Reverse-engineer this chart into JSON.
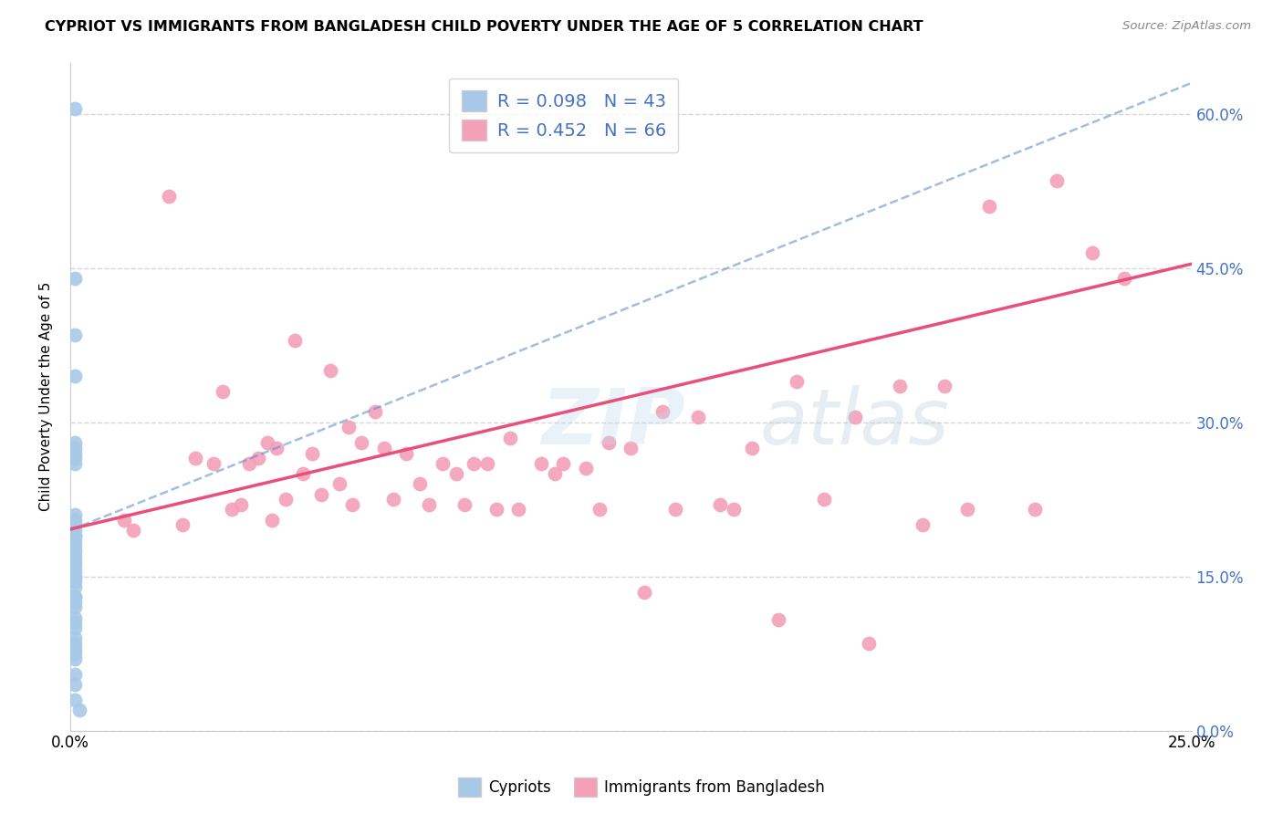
{
  "title": "CYPRIOT VS IMMIGRANTS FROM BANGLADESH CHILD POVERTY UNDER THE AGE OF 5 CORRELATION CHART",
  "source": "Source: ZipAtlas.com",
  "ylabel": "Child Poverty Under the Age of 5",
  "xlim": [
    0.0,
    0.25
  ],
  "ylim": [
    0.0,
    0.65
  ],
  "xticks": [
    0.0,
    0.05,
    0.1,
    0.15,
    0.2,
    0.25
  ],
  "yticks": [
    0.0,
    0.15,
    0.3,
    0.45,
    0.6
  ],
  "blue_R": 0.098,
  "blue_N": 43,
  "pink_R": 0.452,
  "pink_N": 66,
  "blue_color": "#a8c8e8",
  "pink_color": "#f4a0b8",
  "blue_line_color": "#5588cc",
  "pink_line_color": "#e8507a",
  "grid_color": "#cccccc",
  "blue_scatter_x": [
    0.001,
    0.001,
    0.001,
    0.001,
    0.001,
    0.001,
    0.001,
    0.001,
    0.001,
    0.001,
    0.001,
    0.001,
    0.001,
    0.001,
    0.001,
    0.001,
    0.001,
    0.001,
    0.001,
    0.001,
    0.001,
    0.001,
    0.001,
    0.001,
    0.001,
    0.001,
    0.001,
    0.001,
    0.001,
    0.001,
    0.001,
    0.001,
    0.001,
    0.001,
    0.001,
    0.001,
    0.001,
    0.001,
    0.001,
    0.001,
    0.001,
    0.001,
    0.002
  ],
  "blue_scatter_y": [
    0.605,
    0.44,
    0.385,
    0.345,
    0.28,
    0.275,
    0.27,
    0.26,
    0.265,
    0.21,
    0.205,
    0.2,
    0.2,
    0.195,
    0.19,
    0.19,
    0.185,
    0.18,
    0.175,
    0.17,
    0.165,
    0.16,
    0.155,
    0.15,
    0.15,
    0.145,
    0.14,
    0.13,
    0.13,
    0.125,
    0.12,
    0.11,
    0.105,
    0.1,
    0.09,
    0.085,
    0.08,
    0.075,
    0.07,
    0.055,
    0.045,
    0.03,
    0.02
  ],
  "pink_scatter_x": [
    0.012,
    0.014,
    0.022,
    0.025,
    0.028,
    0.032,
    0.034,
    0.036,
    0.038,
    0.04,
    0.042,
    0.044,
    0.045,
    0.046,
    0.048,
    0.05,
    0.052,
    0.054,
    0.056,
    0.058,
    0.06,
    0.062,
    0.063,
    0.065,
    0.068,
    0.07,
    0.072,
    0.075,
    0.078,
    0.08,
    0.083,
    0.086,
    0.088,
    0.09,
    0.093,
    0.095,
    0.098,
    0.1,
    0.105,
    0.108,
    0.11,
    0.115,
    0.118,
    0.12,
    0.125,
    0.128,
    0.132,
    0.135,
    0.14,
    0.145,
    0.148,
    0.152,
    0.158,
    0.162,
    0.168,
    0.175,
    0.178,
    0.185,
    0.19,
    0.195,
    0.2,
    0.205,
    0.215,
    0.22,
    0.228,
    0.235
  ],
  "pink_scatter_y": [
    0.205,
    0.195,
    0.52,
    0.2,
    0.265,
    0.26,
    0.33,
    0.215,
    0.22,
    0.26,
    0.265,
    0.28,
    0.205,
    0.275,
    0.225,
    0.38,
    0.25,
    0.27,
    0.23,
    0.35,
    0.24,
    0.295,
    0.22,
    0.28,
    0.31,
    0.275,
    0.225,
    0.27,
    0.24,
    0.22,
    0.26,
    0.25,
    0.22,
    0.26,
    0.26,
    0.215,
    0.285,
    0.215,
    0.26,
    0.25,
    0.26,
    0.255,
    0.215,
    0.28,
    0.275,
    0.135,
    0.31,
    0.215,
    0.305,
    0.22,
    0.215,
    0.275,
    0.108,
    0.34,
    0.225,
    0.305,
    0.085,
    0.335,
    0.2,
    0.335,
    0.215,
    0.51,
    0.215,
    0.535,
    0.465,
    0.44
  ]
}
